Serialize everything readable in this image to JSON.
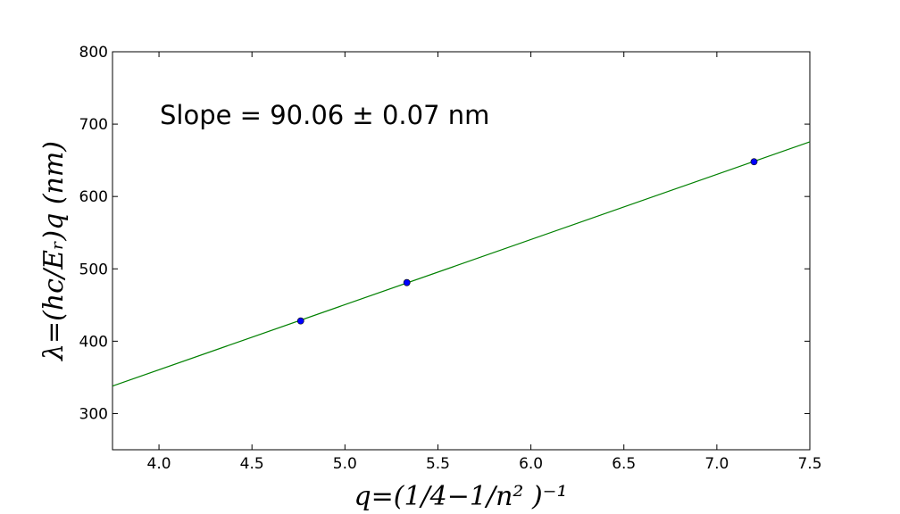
{
  "chart_data": {
    "type": "scatter",
    "title": "",
    "xlabel": "q=(1/4−1/n² )⁻¹",
    "ylabel": "λ=(hc/Eᵣ)q  (nm)",
    "xlim": [
      3.75,
      7.5
    ],
    "ylim": [
      250,
      800
    ],
    "xticks": [
      4.0,
      4.5,
      5.0,
      5.5,
      6.0,
      6.5,
      7.0,
      7.5
    ],
    "xtick_labels": [
      "4.0",
      "4.5",
      "5.0",
      "5.5",
      "6.0",
      "6.5",
      "7.0",
      "7.5"
    ],
    "yticks": [
      300,
      400,
      500,
      600,
      700,
      800
    ],
    "ytick_labels": [
      "300",
      "400",
      "500",
      "600",
      "700",
      "800"
    ],
    "grid": false,
    "series": [
      {
        "kind": "points",
        "color": "#0000ff",
        "x": [
          4.762,
          5.333,
          7.2
        ],
        "y": [
          428,
          481,
          648
        ]
      },
      {
        "kind": "fit-line",
        "color": "#008000",
        "x": [
          3.75,
          7.5
        ],
        "y": [
          338,
          675.5
        ]
      }
    ],
    "annotations": [
      {
        "text": "Slope = 90.06 ± 0.07 nm"
      }
    ]
  }
}
